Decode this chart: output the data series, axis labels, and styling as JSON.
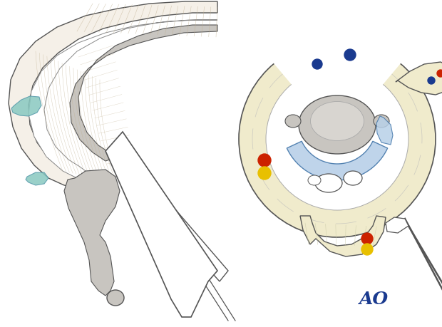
{
  "bg_color": "#ffffff",
  "ao_color": "#1a3a8f",
  "ao_text": "AO",
  "ao_fontsize": 18,
  "skin_color": "#f5f0e8",
  "bone_color": "#c8c5c0",
  "bone_inner_color": "#d8d5d0",
  "tendon_color": "#e8e4dc",
  "outline_color": "#555555",
  "outline_thin": "#888888",
  "yellow_fill": "#f0ebcc",
  "blue_fill": "#b8d0e8",
  "blue_dark": "#1a3a8f",
  "red_dot": "#cc2200",
  "yellow_dot": "#e8c000",
  "teal_color": "#88c8c0",
  "gray_light": "#d0ccc8"
}
